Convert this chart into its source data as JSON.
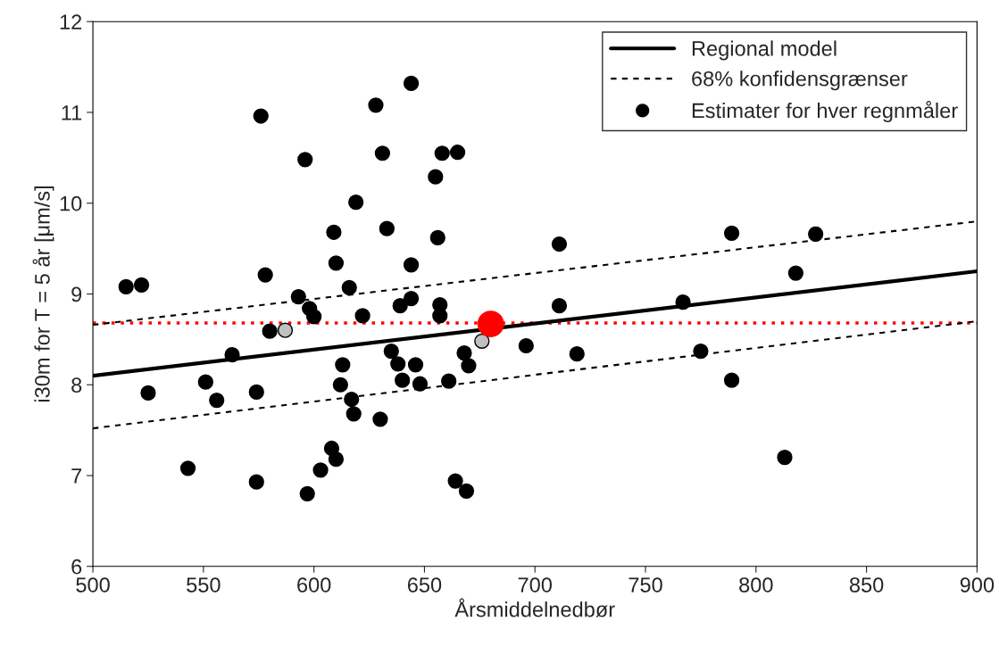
{
  "chart_data": {
    "type": "scatter",
    "xlabel": "Årsmiddelnedbør",
    "ylabel": "i30m for T = 5 år [μm/s]",
    "xlim": [
      500,
      900
    ],
    "xticks": [
      500,
      550,
      600,
      650,
      700,
      750,
      800,
      850,
      900
    ],
    "ylim": [
      6,
      12
    ],
    "yticks": [
      6,
      7,
      8,
      9,
      10,
      11,
      12
    ],
    "grid": false,
    "legend": "top right",
    "ref_lines": [
      {
        "axis": "y",
        "value": 8.68,
        "color": "#ff0000",
        "line_style": "dotted"
      }
    ],
    "series": [
      {
        "name": "Regional model",
        "type": "line",
        "marker": "none",
        "line_style": "solid",
        "color": "#000000",
        "x": [
          500,
          900
        ],
        "values": [
          8.1,
          9.25
        ]
      },
      {
        "name": "68% konfidensgrænser",
        "type": "line",
        "marker": "none",
        "line_style": "dashed",
        "color": "#000000",
        "x": [
          500,
          900
        ],
        "values": [
          8.66,
          9.8
        ]
      },
      {
        "type": "line",
        "marker": "none",
        "line_style": "dashed",
        "color": "#000000",
        "x": [
          500,
          900
        ],
        "values": [
          7.52,
          8.7
        ]
      },
      {
        "name": "Estimater for hver regnmåler",
        "marker": "circle",
        "color": "#000000",
        "x": [
          515,
          522,
          525,
          543,
          551,
          556,
          563,
          574,
          574,
          576,
          578,
          580,
          593,
          596,
          597,
          598,
          600,
          603,
          608,
          609,
          610,
          610,
          612,
          613,
          616,
          617,
          618,
          619,
          622,
          628,
          630,
          631,
          633,
          635,
          638,
          639,
          640,
          644,
          644,
          644,
          646,
          648,
          655,
          656,
          657,
          657,
          658,
          661,
          664,
          665,
          668,
          669,
          670,
          696,
          711,
          711,
          719,
          767,
          775,
          789,
          789,
          813,
          818,
          827
        ],
        "values": [
          9.08,
          9.1,
          7.91,
          7.08,
          8.03,
          7.83,
          8.33,
          7.92,
          6.93,
          10.96,
          9.21,
          8.59,
          8.97,
          10.48,
          6.8,
          8.84,
          8.75,
          7.06,
          7.3,
          9.68,
          9.34,
          7.18,
          8.0,
          8.22,
          9.07,
          7.84,
          7.68,
          10.01,
          8.76,
          11.08,
          7.62,
          10.55,
          9.72,
          8.37,
          8.23,
          8.87,
          8.05,
          11.32,
          9.32,
          8.95,
          8.22,
          8.01,
          10.29,
          9.62,
          8.88,
          8.76,
          10.55,
          8.04,
          6.94,
          10.56,
          8.35,
          6.83,
          8.21,
          8.43,
          9.55,
          8.87,
          8.34,
          8.91,
          8.37,
          9.67,
          8.05,
          7.2,
          9.23,
          9.66
        ]
      },
      {
        "marker": "circle",
        "color": "#c0c0c0",
        "x": [
          587,
          676
        ],
        "values": [
          8.6,
          8.48
        ]
      },
      {
        "marker": "circle",
        "color": "#ff0000",
        "x": [
          680
        ],
        "values": [
          8.67
        ]
      }
    ]
  }
}
